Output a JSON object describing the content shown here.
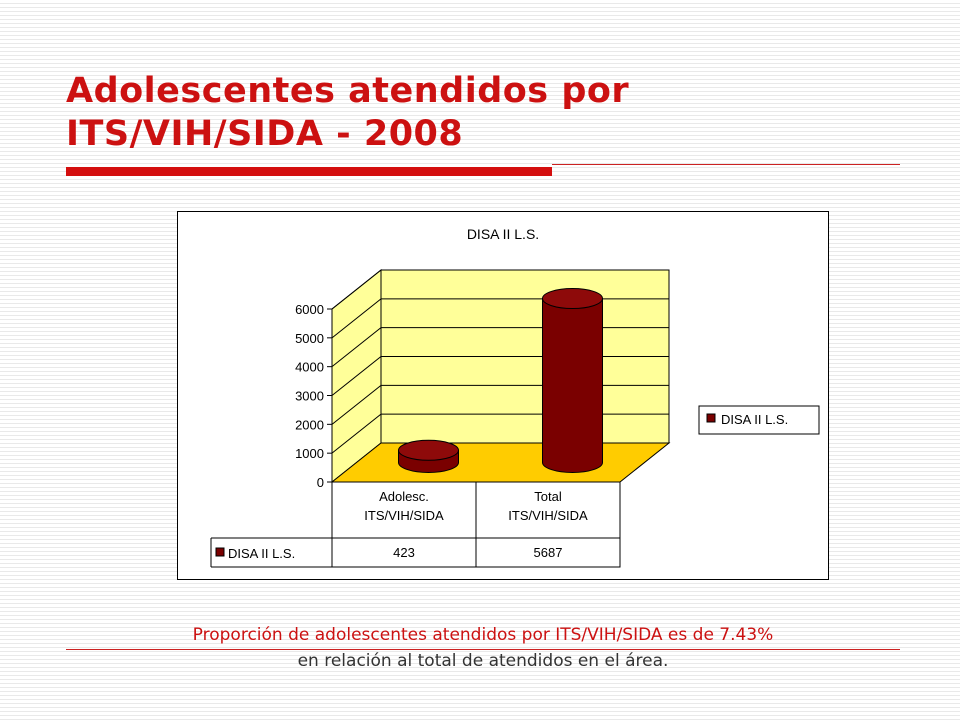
{
  "slide": {
    "title_line1": "Adolescentes atendidos por",
    "title_line2": "ITS/VIH/SIDA - 2008",
    "caption_line1": "Proporción de adolescentes atendidos por ITS/VIH/SIDA es de 7.43%",
    "caption_line2": "en relación al total de atendidos en el área."
  },
  "colors": {
    "title": "#cc1111",
    "bar": "#7a0000",
    "wall": "#ffff99",
    "floor": "#ffcc00"
  },
  "chart_data": {
    "type": "bar",
    "title": "DISA II L.S.",
    "categories": [
      "Adolesc.\nITS/VIH/SIDA",
      "Total\nITS/VIH/SIDA"
    ],
    "category_lines": [
      [
        "Adolesc.",
        "ITS/VIH/SIDA"
      ],
      [
        "Total",
        "ITS/VIH/SIDA"
      ]
    ],
    "series": [
      {
        "name": "DISA II L.S.",
        "values": [
          423,
          5687
        ]
      }
    ],
    "table_values": [
      "423",
      "5687"
    ],
    "ylim": [
      0,
      6000
    ],
    "yticks": [
      0,
      1000,
      2000,
      3000,
      4000,
      5000,
      6000
    ],
    "grid": true,
    "legend": "right",
    "style": "3d-cylinder",
    "xlabel": "",
    "ylabel": ""
  }
}
